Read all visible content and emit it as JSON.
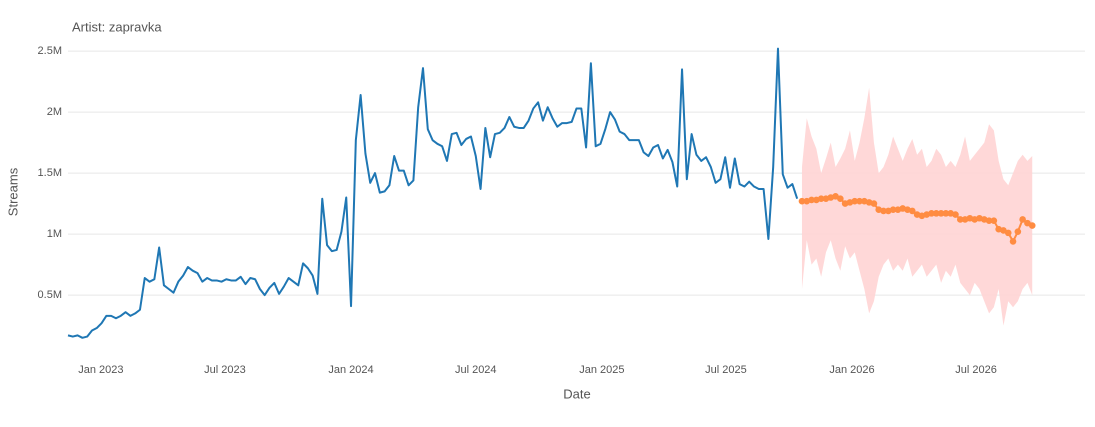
{
  "chart_data": {
    "type": "line",
    "title": "Artist: zapravka",
    "x_label": "Date",
    "y_label": "Streams",
    "xlim": [
      "2022-11-14",
      "2026-12-07"
    ],
    "xticks": [
      {
        "value": "2023-01-01",
        "label": "Jan 2023"
      },
      {
        "value": "2023-07-01",
        "label": "Jul 2023"
      },
      {
        "value": "2024-01-01",
        "label": "Jan 2024"
      },
      {
        "value": "2024-07-01",
        "label": "Jul 2024"
      },
      {
        "value": "2025-01-01",
        "label": "Jan 2025"
      },
      {
        "value": "2025-07-01",
        "label": "Jul 2025"
      },
      {
        "value": "2026-01-01",
        "label": "Jan 2026"
      },
      {
        "value": "2026-07-01",
        "label": "Jul 2026"
      }
    ],
    "ylim": [
      50000,
      2550000
    ],
    "yticks": [
      {
        "value": 500000,
        "label": "0.5M"
      },
      {
        "value": 1000000,
        "label": "1M"
      },
      {
        "value": 1500000,
        "label": "1.5M"
      },
      {
        "value": 2000000,
        "label": "2M"
      },
      {
        "value": 2500000,
        "label": "2.5M"
      }
    ],
    "grid": true,
    "series": [
      {
        "color": "#1f77b4",
        "x": [
          "2022-11-14",
          "2022-11-21",
          "2022-11-28",
          "2022-12-05",
          "2022-12-12",
          "2022-12-19",
          "2022-12-26",
          "2023-01-02",
          "2023-01-09",
          "2023-01-16",
          "2023-01-23",
          "2023-01-30",
          "2023-02-06",
          "2023-02-13",
          "2023-02-20",
          "2023-02-27",
          "2023-03-06",
          "2023-03-13",
          "2023-03-20",
          "2023-03-27",
          "2023-04-03",
          "2023-04-10",
          "2023-04-17",
          "2023-04-24",
          "2023-05-01",
          "2023-05-08",
          "2023-05-15",
          "2023-05-22",
          "2023-05-29",
          "2023-06-05",
          "2023-06-12",
          "2023-06-19",
          "2023-06-26",
          "2023-07-03",
          "2023-07-10",
          "2023-07-17",
          "2023-07-24",
          "2023-07-31",
          "2023-08-07",
          "2023-08-14",
          "2023-08-21",
          "2023-08-28",
          "2023-09-04",
          "2023-09-11",
          "2023-09-18",
          "2023-09-25",
          "2023-10-02",
          "2023-10-09",
          "2023-10-16",
          "2023-10-23",
          "2023-10-30",
          "2023-11-06",
          "2023-11-13",
          "2023-11-20",
          "2023-11-27",
          "2023-12-04",
          "2023-12-11",
          "2023-12-18",
          "2023-12-25",
          "2024-01-01",
          "2024-01-08",
          "2024-01-15",
          "2024-01-22",
          "2024-01-29",
          "2024-02-05",
          "2024-02-12",
          "2024-02-19",
          "2024-02-26",
          "2024-03-04",
          "2024-03-11",
          "2024-03-18",
          "2024-03-25",
          "2024-04-01",
          "2024-04-08",
          "2024-04-15",
          "2024-04-22",
          "2024-04-29",
          "2024-05-06",
          "2024-05-13",
          "2024-05-20",
          "2024-05-27",
          "2024-06-03",
          "2024-06-10",
          "2024-06-17",
          "2024-06-24",
          "2024-07-01",
          "2024-07-08",
          "2024-07-15",
          "2024-07-22",
          "2024-07-29",
          "2024-08-05",
          "2024-08-12",
          "2024-08-19",
          "2024-08-26",
          "2024-09-02",
          "2024-09-09",
          "2024-09-16",
          "2024-09-23",
          "2024-09-30",
          "2024-10-07",
          "2024-10-14",
          "2024-10-21",
          "2024-10-28",
          "2024-11-04",
          "2024-11-11",
          "2024-11-18",
          "2024-11-25",
          "2024-12-02",
          "2024-12-09",
          "2024-12-16",
          "2024-12-23",
          "2024-12-30",
          "2025-01-06",
          "2025-01-13",
          "2025-01-20",
          "2025-01-27",
          "2025-02-03",
          "2025-02-10",
          "2025-02-17",
          "2025-02-24",
          "2025-03-03",
          "2025-03-10",
          "2025-03-17",
          "2025-03-24",
          "2025-03-31",
          "2025-04-07",
          "2025-04-14",
          "2025-04-21",
          "2025-04-28",
          "2025-05-05",
          "2025-05-12",
          "2025-05-19",
          "2025-05-26",
          "2025-06-02",
          "2025-06-09",
          "2025-06-16",
          "2025-06-23",
          "2025-06-30",
          "2025-07-07",
          "2025-07-14",
          "2025-07-21",
          "2025-07-28",
          "2025-08-04",
          "2025-08-11",
          "2025-08-18",
          "2025-08-25",
          "2025-09-01",
          "2025-09-08",
          "2025-09-15",
          "2025-09-22",
          "2025-09-29",
          "2025-10-06",
          "2025-10-13"
        ],
        "values": [
          170000,
          160000,
          170000,
          150000,
          160000,
          210000,
          230000,
          270000,
          330000,
          330000,
          310000,
          330000,
          360000,
          330000,
          350000,
          380000,
          640000,
          610000,
          630000,
          890000,
          580000,
          550000,
          520000,
          610000,
          660000,
          730000,
          700000,
          680000,
          610000,
          640000,
          620000,
          620000,
          610000,
          630000,
          620000,
          620000,
          650000,
          590000,
          640000,
          630000,
          550000,
          500000,
          560000,
          600000,
          510000,
          570000,
          640000,
          610000,
          580000,
          760000,
          720000,
          660000,
          510000,
          1290000,
          910000,
          860000,
          870000,
          1020000,
          1300000,
          410000,
          1770000,
          2140000,
          1660000,
          1420000,
          1500000,
          1340000,
          1350000,
          1400000,
          1640000,
          1520000,
          1520000,
          1400000,
          1440000,
          2040000,
          2360000,
          1860000,
          1770000,
          1740000,
          1720000,
          1600000,
          1820000,
          1830000,
          1730000,
          1780000,
          1800000,
          1640000,
          1370000,
          1870000,
          1630000,
          1820000,
          1830000,
          1870000,
          1960000,
          1880000,
          1870000,
          1870000,
          1930000,
          2030000,
          2080000,
          1930000,
          2040000,
          1950000,
          1880000,
          1910000,
          1910000,
          1920000,
          2030000,
          2030000,
          1710000,
          2400000,
          1720000,
          1740000,
          1860000,
          2000000,
          1940000,
          1840000,
          1820000,
          1770000,
          1770000,
          1770000,
          1670000,
          1640000,
          1710000,
          1730000,
          1620000,
          1690000,
          1590000,
          1390000,
          2350000,
          1450000,
          1820000,
          1650000,
          1600000,
          1630000,
          1550000,
          1420000,
          1450000,
          1630000,
          1380000,
          1620000,
          1410000,
          1390000,
          1430000,
          1390000,
          1370000,
          1370000,
          960000,
          1550000,
          2520000,
          1490000,
          1380000,
          1410000,
          1290000
        ]
      },
      {
        "color": "#ff8c42",
        "band_color": "#ffd4d4",
        "x": [
          "2025-10-20",
          "2025-10-27",
          "2025-11-03",
          "2025-11-10",
          "2025-11-17",
          "2025-11-24",
          "2025-12-01",
          "2025-12-08",
          "2025-12-15",
          "2025-12-22",
          "2025-12-29",
          "2026-01-05",
          "2026-01-12",
          "2026-01-19",
          "2026-01-26",
          "2026-02-02",
          "2026-02-09",
          "2026-02-16",
          "2026-02-23",
          "2026-03-02",
          "2026-03-09",
          "2026-03-16",
          "2026-03-23",
          "2026-03-30",
          "2026-04-06",
          "2026-04-13",
          "2026-04-20",
          "2026-04-27",
          "2026-05-04",
          "2026-05-11",
          "2026-05-18",
          "2026-05-25",
          "2026-06-01",
          "2026-06-08",
          "2026-06-15",
          "2026-06-22",
          "2026-06-29",
          "2026-07-06",
          "2026-07-13",
          "2026-07-20",
          "2026-07-27",
          "2026-08-03",
          "2026-08-10",
          "2026-08-17",
          "2026-08-24",
          "2026-08-31",
          "2026-09-07",
          "2026-09-14",
          "2026-09-21"
        ],
        "values": [
          1270000,
          1270000,
          1280000,
          1280000,
          1290000,
          1290000,
          1300000,
          1310000,
          1290000,
          1250000,
          1260000,
          1270000,
          1270000,
          1270000,
          1260000,
          1250000,
          1200000,
          1190000,
          1190000,
          1200000,
          1200000,
          1210000,
          1200000,
          1190000,
          1160000,
          1150000,
          1160000,
          1170000,
          1170000,
          1170000,
          1170000,
          1170000,
          1160000,
          1120000,
          1120000,
          1130000,
          1120000,
          1130000,
          1120000,
          1110000,
          1110000,
          1040000,
          1030000,
          1010000,
          940000,
          1020000,
          1120000,
          1090000,
          1070000
        ],
        "upper": [
          1550000,
          1950000,
          1800000,
          1700000,
          1500000,
          1620000,
          1750000,
          1550000,
          1620000,
          1700000,
          1850000,
          1600000,
          1750000,
          1950000,
          2200000,
          1750000,
          1500000,
          1550000,
          1650000,
          1800000,
          1700000,
          1600000,
          1700000,
          1780000,
          1650000,
          1700000,
          1550000,
          1600000,
          1700000,
          1650000,
          1550000,
          1600000,
          1550000,
          1650000,
          1800000,
          1600000,
          1650000,
          1700000,
          1750000,
          1900000,
          1850000,
          1600000,
          1450000,
          1400000,
          1500000,
          1600000,
          1650000,
          1600000,
          1640000
        ],
        "lower": [
          550000,
          950000,
          750000,
          800000,
          650000,
          850000,
          950000,
          800000,
          700000,
          900000,
          800000,
          850000,
          700000,
          550000,
          350000,
          450000,
          650000,
          750000,
          800000,
          700000,
          750000,
          700000,
          800000,
          650000,
          700000,
          750000,
          650000,
          700000,
          750000,
          600000,
          700000,
          650000,
          750000,
          600000,
          550000,
          500000,
          600000,
          550000,
          450000,
          350000,
          400000,
          550000,
          250000,
          450000,
          400000,
          450000,
          550000,
          600000,
          500000
        ]
      }
    ]
  }
}
